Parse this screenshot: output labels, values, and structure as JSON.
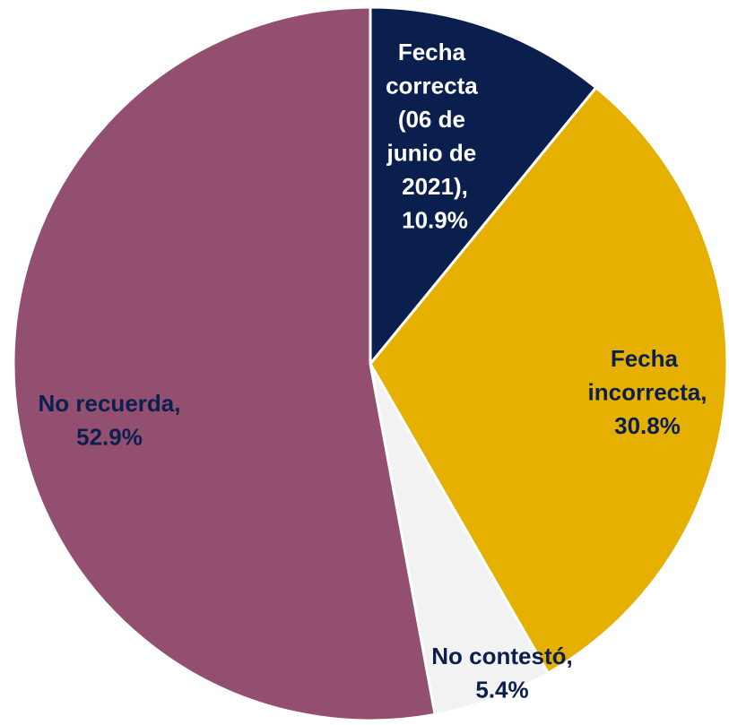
{
  "chart_data": {
    "type": "pie",
    "categories": [
      "Fecha correcta (06 de junio de 2021),",
      "Fecha incorrecta,",
      "No contestó,",
      "No recuerda,"
    ],
    "values": [
      10.9,
      30.8,
      5.4,
      52.9
    ],
    "value_labels": [
      "10.9%",
      "30.8%",
      "5.4%",
      "52.9%"
    ],
    "colors": [
      "#0b1f4f",
      "#e6b000",
      "#f2f2f2",
      "#924f6f"
    ],
    "label_colors": [
      "#ffffff",
      "#0b1f4f",
      "#0b1f4f",
      "#0b1f4f"
    ]
  }
}
